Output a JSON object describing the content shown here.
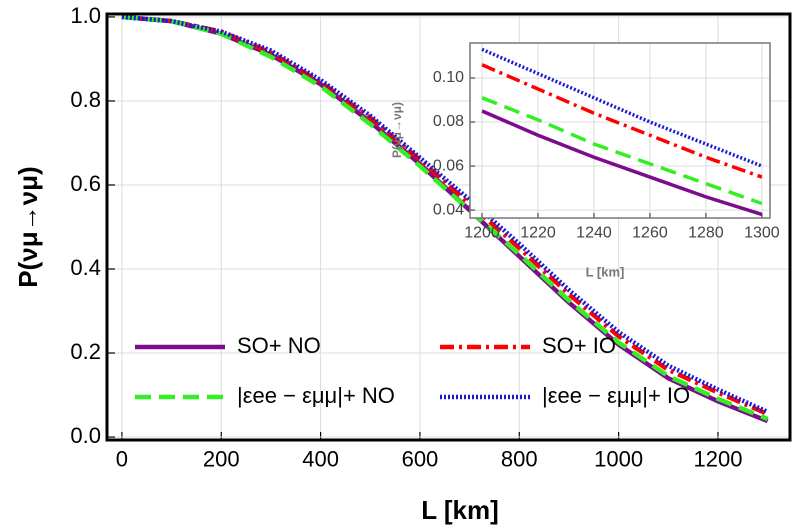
{
  "chart_data": [
    {
      "type": "line",
      "xlabel": "L [km]",
      "ylabel": "P(νμ→νμ)",
      "x": [
        0,
        100,
        200,
        300,
        400,
        500,
        600,
        700,
        800,
        900,
        1000,
        1100,
        1200,
        1300
      ],
      "series": [
        {
          "name": "SO+ NO",
          "color": "#7b0d8c",
          "style": "solid",
          "values": [
            1,
            0.99,
            0.96,
            0.91,
            0.84,
            0.75,
            0.65,
            0.54,
            0.43,
            0.32,
            0.22,
            0.14,
            0.085,
            0.038
          ]
        },
        {
          "name": "SO+ IO",
          "color": "#ff0000",
          "style": "dashdot",
          "values": [
            1,
            0.99,
            0.965,
            0.915,
            0.845,
            0.76,
            0.66,
            0.555,
            0.45,
            0.34,
            0.24,
            0.16,
            0.106,
            0.055
          ]
        },
        {
          "name": "|εee − εμμ|+ NO",
          "color": "#33ee22",
          "style": "dashed",
          "values": [
            1,
            0.99,
            0.96,
            0.905,
            0.835,
            0.745,
            0.645,
            0.54,
            0.435,
            0.325,
            0.225,
            0.145,
            0.091,
            0.043
          ]
        },
        {
          "name": "|εee − εμμ|+ IO",
          "color": "#1a1ad6",
          "style": "dotted",
          "values": [
            1,
            0.99,
            0.965,
            0.92,
            0.85,
            0.765,
            0.665,
            0.565,
            0.46,
            0.35,
            0.25,
            0.17,
            0.113,
            0.06
          ]
        }
      ],
      "xlim": [
        -30,
        1345
      ],
      "ylim": [
        -0.007,
        1.007
      ],
      "xticks": [
        0,
        200,
        400,
        600,
        800,
        1000,
        1200
      ],
      "yticks": [
        {
          "value": 0,
          "label": "0.0"
        },
        0.2,
        0.4,
        0.6,
        0.8,
        {
          "value": 1,
          "label": "1.0"
        }
      ],
      "grid": true,
      "legend": "bottom"
    },
    {
      "type": "line",
      "xlabel": "L [km]",
      "ylabel": "P(νμ→νμ)",
      "x": [
        1200,
        1220,
        1240,
        1260,
        1280,
        1300
      ],
      "series": [
        {
          "color": "#7b0d8c",
          "style": "solid",
          "values": [
            0.085,
            0.074,
            0.064,
            0.055,
            0.046,
            0.038
          ]
        },
        {
          "color": "#ff0000",
          "style": "dashdot",
          "values": [
            0.106,
            0.095,
            0.084,
            0.074,
            0.064,
            0.055
          ]
        },
        {
          "color": "#33ee22",
          "style": "dashed",
          "values": [
            0.091,
            0.081,
            0.07,
            0.061,
            0.052,
            0.043
          ]
        },
        {
          "color": "#1a1ad6",
          "style": "dotted",
          "values": [
            0.113,
            0.102,
            0.091,
            0.08,
            0.07,
            0.06
          ]
        }
      ],
      "xlim": [
        1195.7,
        1302.9
      ],
      "ylim": [
        0.0364,
        0.1159
      ],
      "xticks": [
        1200,
        1220,
        1240,
        1260,
        1280,
        1300
      ],
      "yticks": [
        0.04,
        0.06,
        0.08,
        {
          "value": 0.1,
          "label": "0.10"
        }
      ],
      "grid": true
    }
  ]
}
